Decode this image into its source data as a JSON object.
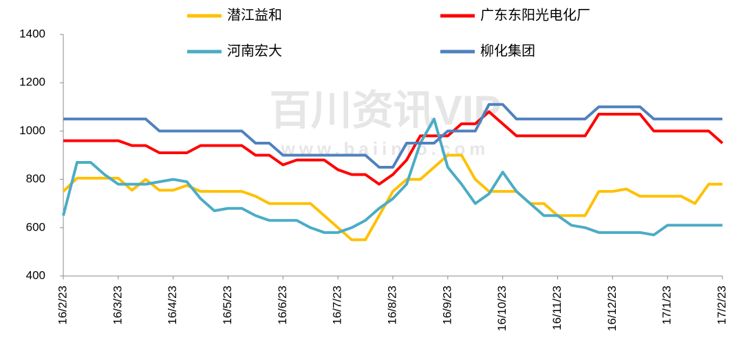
{
  "chart_data": {
    "type": "line",
    "watermark": "百川资讯VIP",
    "watermark_sub": "www.baiinfo.com",
    "categories": [
      "16/2/23",
      null,
      null,
      null,
      "16/3/23",
      null,
      null,
      null,
      "16/4/23",
      null,
      null,
      null,
      "16/5/23",
      null,
      null,
      null,
      "16/6/23",
      null,
      null,
      null,
      "16/7/23",
      null,
      null,
      null,
      "16/8/23",
      null,
      null,
      null,
      "16/9/23",
      null,
      null,
      null,
      "16/10/23",
      null,
      null,
      null,
      "16/11/23",
      null,
      null,
      null,
      "16/12/23",
      null,
      null,
      null,
      "17/1/23",
      null,
      null,
      null,
      "17/2/23"
    ],
    "series": [
      {
        "name": "潜江益和",
        "color": "#FFC000",
        "values": [
          750,
          805,
          805,
          805,
          805,
          755,
          800,
          755,
          755,
          775,
          750,
          750,
          750,
          750,
          730,
          700,
          700,
          700,
          700,
          650,
          600,
          550,
          550,
          650,
          750,
          800,
          800,
          850,
          900,
          900,
          800,
          750,
          750,
          750,
          700,
          700,
          650,
          650,
          650,
          750,
          750,
          760,
          730,
          730,
          730,
          730,
          700,
          780,
          780
        ]
      },
      {
        "name": "广东东阳光电化厂",
        "color": "#FF0000",
        "values": [
          960,
          960,
          960,
          960,
          960,
          940,
          940,
          910,
          910,
          910,
          940,
          940,
          940,
          940,
          900,
          900,
          860,
          880,
          880,
          880,
          840,
          820,
          820,
          780,
          820,
          880,
          980,
          980,
          980,
          1030,
          1030,
          1080,
          1030,
          980,
          980,
          980,
          980,
          980,
          980,
          1070,
          1070,
          1070,
          1070,
          1000,
          1000,
          1000,
          1000,
          1000,
          950
        ]
      },
      {
        "name": "河南宏大",
        "color": "#4BACC6",
        "values": [
          650,
          870,
          870,
          820,
          780,
          780,
          780,
          790,
          800,
          790,
          720,
          670,
          680,
          680,
          650,
          630,
          630,
          630,
          600,
          580,
          580,
          600,
          630,
          680,
          720,
          780,
          950,
          1050,
          850,
          780,
          700,
          740,
          830,
          750,
          700,
          650,
          650,
          610,
          600,
          580,
          580,
          580,
          580,
          570,
          610,
          610,
          610,
          610,
          610
        ]
      },
      {
        "name": "柳化集团",
        "color": "#4F81BD",
        "values": [
          1050,
          1050,
          1050,
          1050,
          1050,
          1050,
          1050,
          1000,
          1000,
          1000,
          1000,
          1000,
          1000,
          1000,
          950,
          950,
          900,
          900,
          900,
          900,
          900,
          900,
          900,
          850,
          850,
          950,
          950,
          950,
          1000,
          1000,
          1000,
          1110,
          1110,
          1050,
          1050,
          1050,
          1050,
          1050,
          1050,
          1100,
          1100,
          1100,
          1100,
          1050,
          1050,
          1050,
          1050,
          1050,
          1050
        ]
      }
    ],
    "ylim": [
      400,
      1400
    ],
    "yticks": [
      400,
      600,
      800,
      1000,
      1200,
      1400
    ],
    "grid": false
  }
}
